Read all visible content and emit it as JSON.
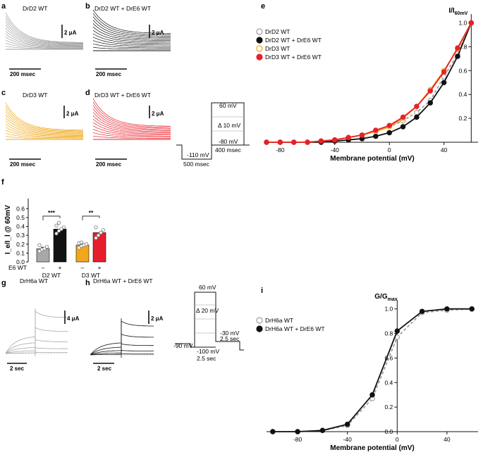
{
  "panels": {
    "a": {
      "letter": "a",
      "title": "DrD2 WT",
      "scale_y": "2 μA",
      "scale_x": "200 msec"
    },
    "b": {
      "letter": "b",
      "title": "DrD2 WT + DrE6 WT",
      "scale_y": "2 μA",
      "scale_x": "200 msec"
    },
    "c": {
      "letter": "c",
      "title": "DrD3 WT",
      "scale_y": "2 μA",
      "scale_x": "200 msec"
    },
    "d": {
      "letter": "d",
      "title": "DrD3 WT + DrE6 WT",
      "scale_y": "2 μA",
      "scale_x": "200 msec"
    },
    "e": {
      "letter": "e"
    },
    "f": {
      "letter": "f"
    },
    "g": {
      "letter": "g",
      "title": "DrH6a WT",
      "scale_y": "4 μA",
      "scale_x": "2 sec"
    },
    "h": {
      "letter": "h",
      "title": "DrH6a WT + DrE6 WT",
      "scale_y": "2 μA",
      "scale_x": "2 sec"
    },
    "i": {
      "letter": "i"
    }
  },
  "protocol_top": {
    "v_top": "60 mV",
    "step": "Δ 10 mV",
    "v_hold": "-110 mV",
    "v_tail": "-80 mV",
    "t_pre": "500 msec",
    "t_step": "400 msec"
  },
  "protocol_bottom": {
    "v_top": "60 mV",
    "step": "Δ 20 mV",
    "v_hold": "-90 mV",
    "v_pre": "-100 mV",
    "v_tail": "-30 mV",
    "t_step": "2.5 sec",
    "t_tail": "2.5 sec"
  },
  "chart_data": [
    {
      "panel": "e",
      "type": "line",
      "ylabel_main": "I/I",
      "ylabel_sub": "60mV",
      "xlabel": "Membrane potential (mV)",
      "xlim": [
        -90,
        65
      ],
      "ylim": [
        0,
        1.05
      ],
      "xticks": [
        -80,
        -40,
        0,
        40
      ],
      "yticks": [
        0.2,
        0.4,
        0.6,
        0.8,
        1.0
      ],
      "x": [
        -90,
        -80,
        -70,
        -60,
        -50,
        -40,
        -30,
        -20,
        -10,
        0,
        10,
        20,
        30,
        40,
        50,
        60
      ],
      "series": [
        {
          "name": "DrD2 WT",
          "color": "#9e9e9e",
          "marker": "open",
          "dash": true,
          "values": [
            0.0,
            0.0,
            0.0,
            0.0,
            0.01,
            0.02,
            0.04,
            0.06,
            0.09,
            0.13,
            0.18,
            0.25,
            0.35,
            0.55,
            0.74,
            1.0
          ]
        },
        {
          "name": "DrD2 WT + DrE6 WT",
          "color": "#111111",
          "marker": "filled",
          "values": [
            0.0,
            0.0,
            0.0,
            0.0,
            0.0,
            0.01,
            0.02,
            0.03,
            0.05,
            0.08,
            0.13,
            0.21,
            0.33,
            0.5,
            0.72,
            1.0
          ]
        },
        {
          "name": "DrD3 WT",
          "color": "#f0a818",
          "marker": "open",
          "values": [
            0.0,
            0.0,
            0.0,
            0.0,
            0.01,
            0.02,
            0.04,
            0.06,
            0.09,
            0.13,
            0.2,
            0.3,
            0.44,
            0.6,
            0.78,
            1.0
          ]
        },
        {
          "name": "DrD3 WT + DrE6 WT",
          "color": "#e8202a",
          "marker": "filled",
          "values": [
            0.0,
            0.0,
            0.0,
            0.0,
            0.01,
            0.02,
            0.04,
            0.06,
            0.1,
            0.14,
            0.21,
            0.3,
            0.43,
            0.59,
            0.79,
            1.0
          ]
        }
      ]
    },
    {
      "panel": "f",
      "type": "bar",
      "ylabel": "I_e/I_l @ 60mV",
      "ylim": [
        0,
        0.65
      ],
      "yticks": [
        0.0,
        0.1,
        0.2,
        0.3,
        0.4,
        0.5,
        0.6
      ],
      "row_label": "E6 WT",
      "groups": [
        "D2 WT",
        "D3 WT"
      ],
      "e6_signs": [
        "–",
        "+",
        "–",
        "+"
      ],
      "categories": [
        "D2 WT −E6",
        "D2 WT +E6",
        "D3 WT −E6",
        "D3 WT +E6"
      ],
      "values": [
        0.15,
        0.37,
        0.19,
        0.33
      ],
      "errors": [
        0.015,
        0.02,
        0.01,
        0.025
      ],
      "colors": [
        "#a8a8a8",
        "#111111",
        "#f3a51c",
        "#e61e2c"
      ],
      "points": [
        [
          0.12,
          0.14,
          0.15,
          0.17,
          0.19
        ],
        [
          0.32,
          0.35,
          0.37,
          0.39,
          0.41,
          0.44
        ],
        [
          0.16,
          0.18,
          0.19,
          0.2,
          0.21,
          0.22
        ],
        [
          0.27,
          0.3,
          0.33,
          0.36,
          0.39
        ]
      ],
      "significance": [
        {
          "pair": [
            0,
            1
          ],
          "label": "***"
        },
        {
          "pair": [
            2,
            3
          ],
          "label": "**"
        }
      ]
    },
    {
      "panel": "i",
      "type": "line",
      "ylabel_main": "G/G",
      "ylabel_sub": "max",
      "xlabel": "Membrane potential (mV)",
      "xlim": [
        -105,
        65
      ],
      "ylim": [
        0,
        1.05
      ],
      "xticks": [
        -80,
        -40,
        0,
        40
      ],
      "yticks": [
        0.0,
        0.2,
        0.4,
        0.6,
        0.8,
        1.0
      ],
      "x": [
        -100,
        -80,
        -60,
        -40,
        -20,
        0,
        20,
        40,
        60
      ],
      "series": [
        {
          "name": "DrH6a WT",
          "color": "#9e9e9e",
          "marker": "open",
          "dash": true,
          "values": [
            0.0,
            0.0,
            0.01,
            0.05,
            0.27,
            0.77,
            0.97,
            0.99,
            1.0
          ]
        },
        {
          "name": "DrH6a WT + DrE6 WT",
          "color": "#111111",
          "marker": "filled",
          "values": [
            0.0,
            0.0,
            0.01,
            0.06,
            0.3,
            0.82,
            0.98,
            1.0,
            1.0
          ]
        }
      ]
    }
  ]
}
